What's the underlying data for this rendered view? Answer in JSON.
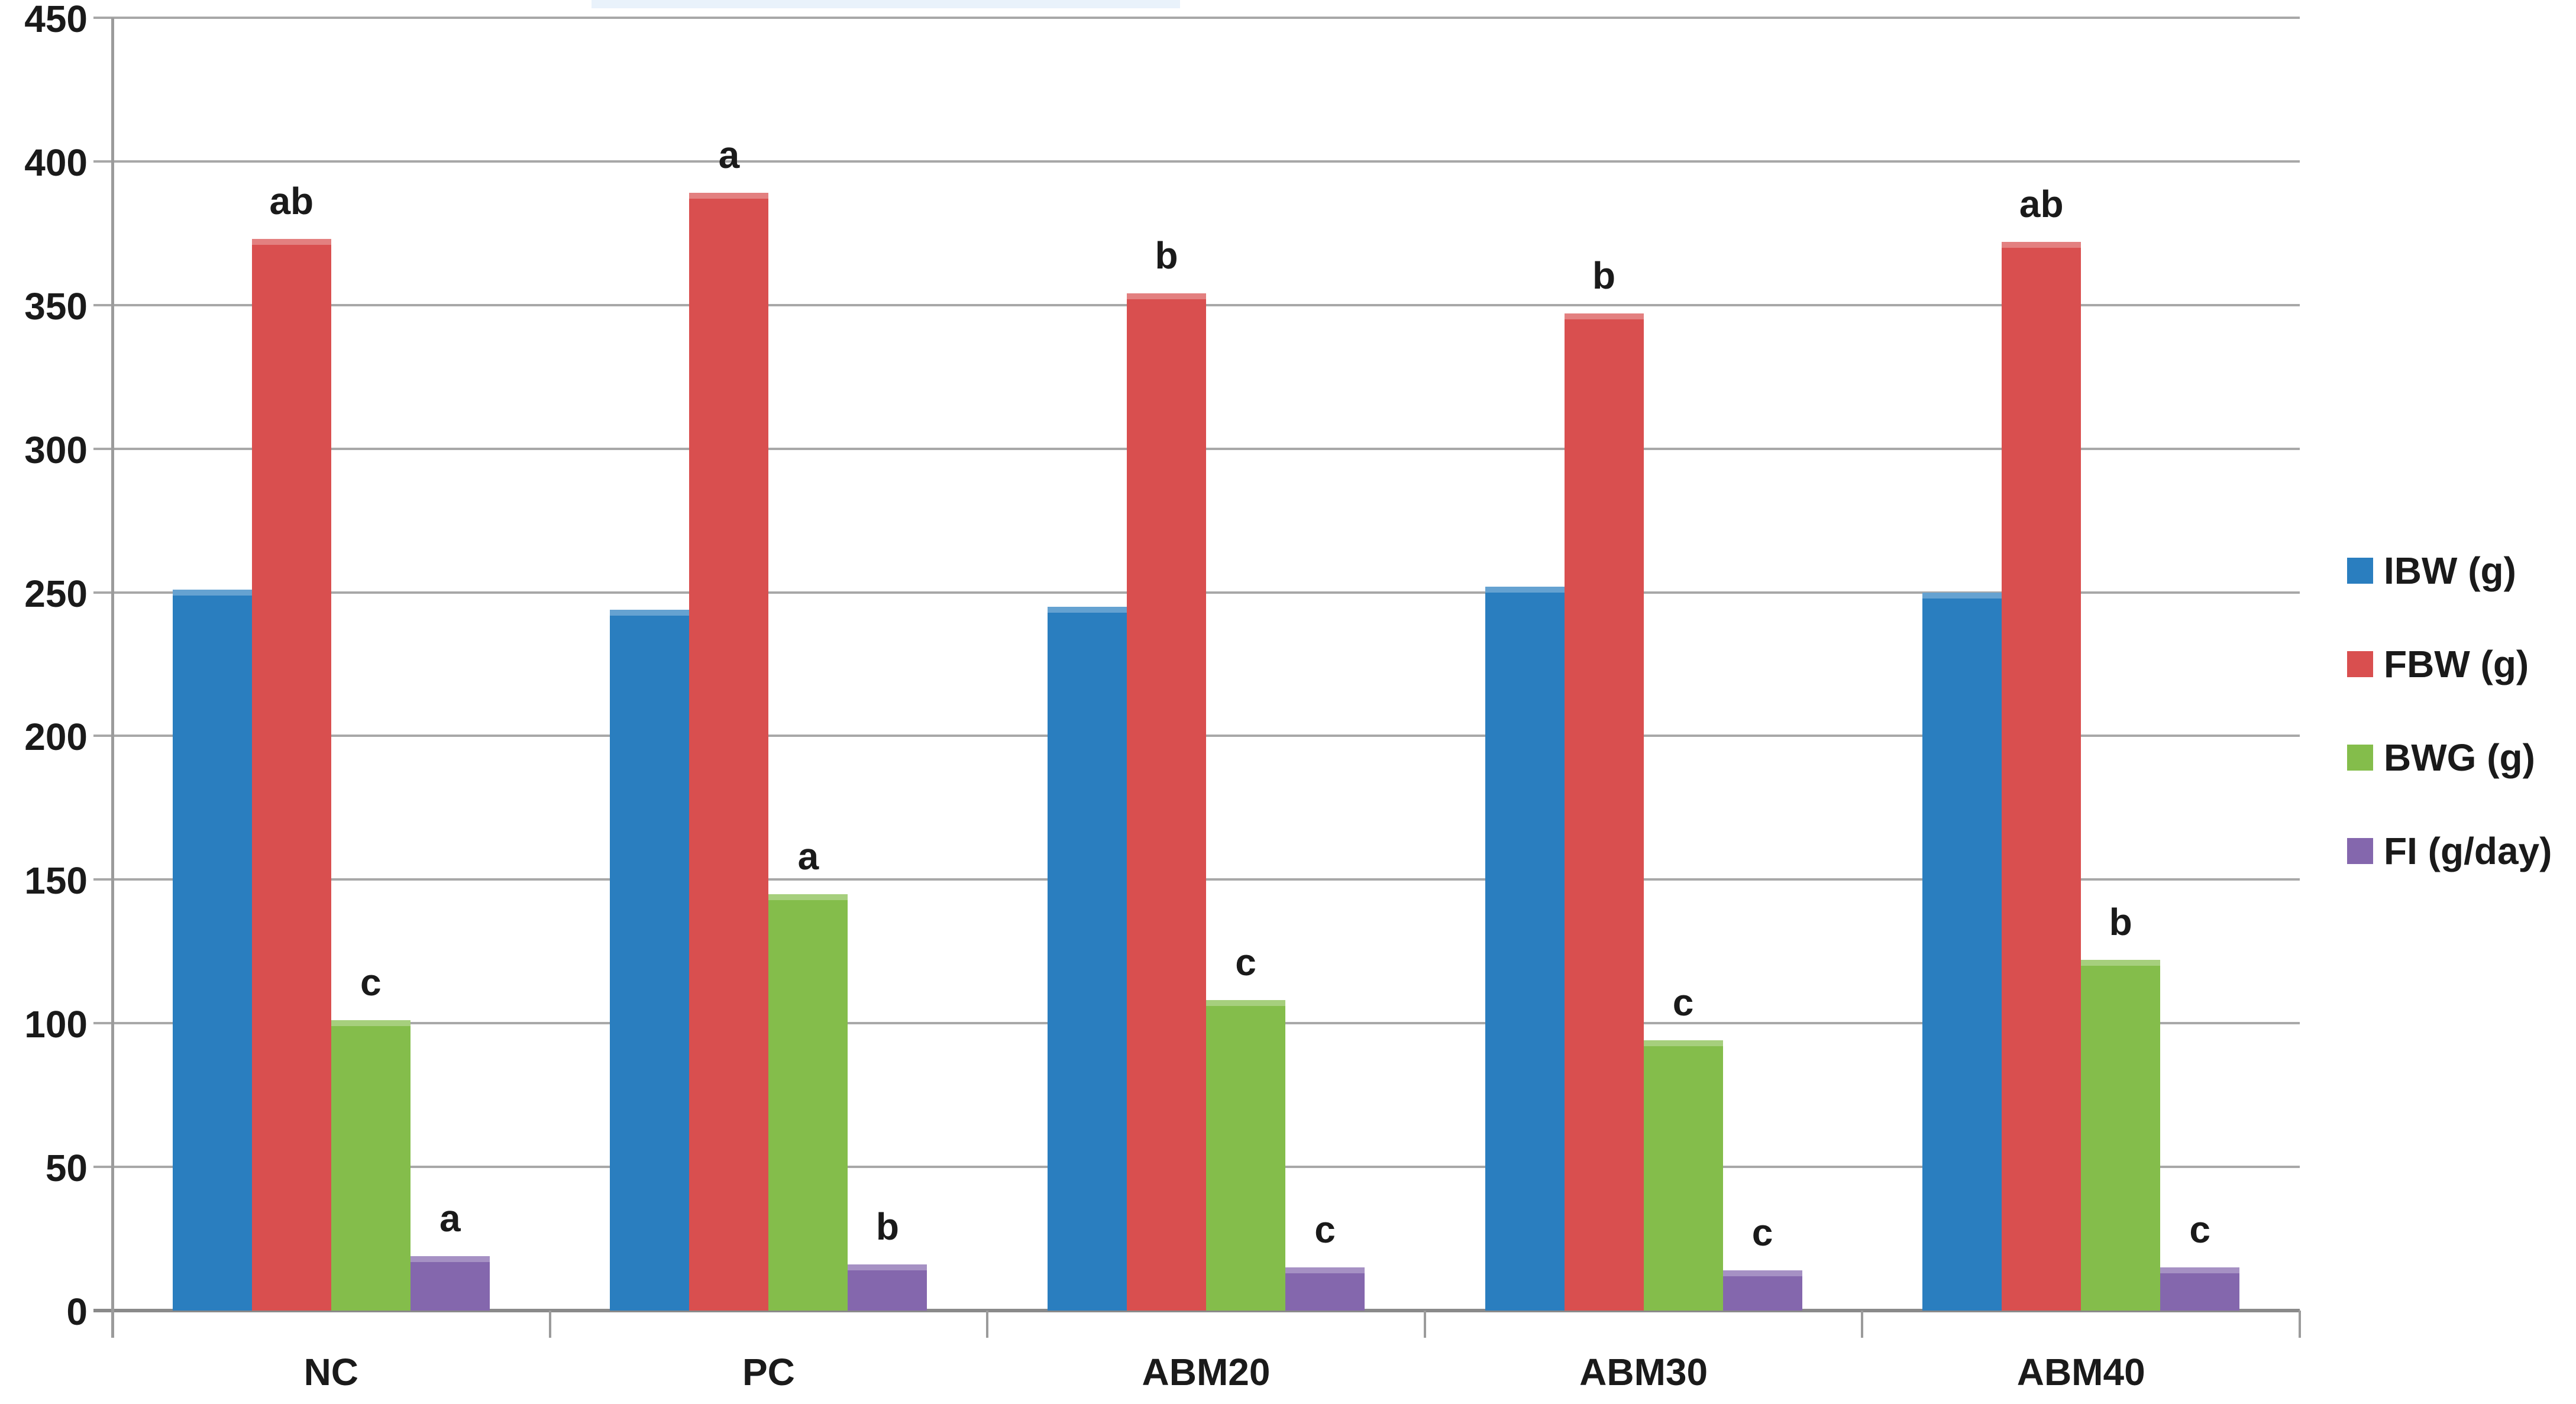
{
  "chart_data": {
    "type": "bar",
    "title": "",
    "xlabel": "",
    "ylabel": "",
    "categories": [
      "NC",
      "PC",
      "ABM20",
      "ABM30",
      "ABM40"
    ],
    "series": [
      {
        "key": "ibw",
        "name": "IBW (g)",
        "color": "#2a7ebf",
        "values": [
          251,
          244,
          245,
          252,
          250
        ],
        "letters": [
          "",
          "",
          "",
          "",
          ""
        ]
      },
      {
        "key": "fbw",
        "name": "FBW (g)",
        "color": "#d94f4f",
        "values": [
          373,
          389,
          354,
          347,
          372
        ],
        "letters": [
          "ab",
          "a",
          "b",
          "b",
          "ab"
        ]
      },
      {
        "key": "bwg",
        "name": "BWG (g)",
        "color": "#84bd4b",
        "values": [
          101,
          145,
          108,
          94,
          122
        ],
        "letters": [
          "c",
          "a",
          "c",
          "c",
          "b"
        ]
      },
      {
        "key": "fi",
        "name": "FI (g/day)",
        "color": "#8467ad",
        "values": [
          19,
          16,
          15,
          14,
          15
        ],
        "letters": [
          "a",
          "b",
          "c",
          "c",
          "c"
        ]
      }
    ],
    "ylim": [
      0,
      450
    ],
    "ytick_interval": 50,
    "ytick_labels": [
      "450",
      "400",
      "350",
      "300",
      "250",
      "200",
      "150",
      "100",
      "50",
      "0"
    ],
    "grid": true,
    "gridline_color": "#a8a8a8",
    "axis_color": "#9b9b9b",
    "text_color": "#1a1a1a",
    "legend_position": "right"
  }
}
